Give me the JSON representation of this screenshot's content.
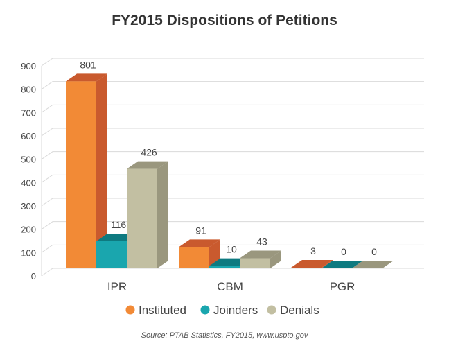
{
  "chart_data": {
    "type": "bar",
    "title": "FY2015 Dispositions of Petitions",
    "source": "Source: PTAB Statistics, FY2015, www.uspto.gov",
    "categories": [
      "IPR",
      "CBM",
      "PGR"
    ],
    "series": [
      {
        "name": "Instituted",
        "values": [
          801,
          91,
          3
        ],
        "color": "#F28A36",
        "side_color": "#C95A2E"
      },
      {
        "name": "Joinders",
        "values": [
          116,
          10,
          0
        ],
        "color": "#1AA6AE",
        "side_color": "#0E7A80"
      },
      {
        "name": "Denials",
        "values": [
          426,
          43,
          0
        ],
        "color": "#C2BFA2",
        "side_color": "#9A977E"
      }
    ],
    "yticks": [
      0,
      100,
      200,
      300,
      400,
      500,
      600,
      700,
      800,
      900
    ],
    "ylim": [
      0,
      900
    ],
    "grid": true,
    "legend_position": "bottom"
  }
}
